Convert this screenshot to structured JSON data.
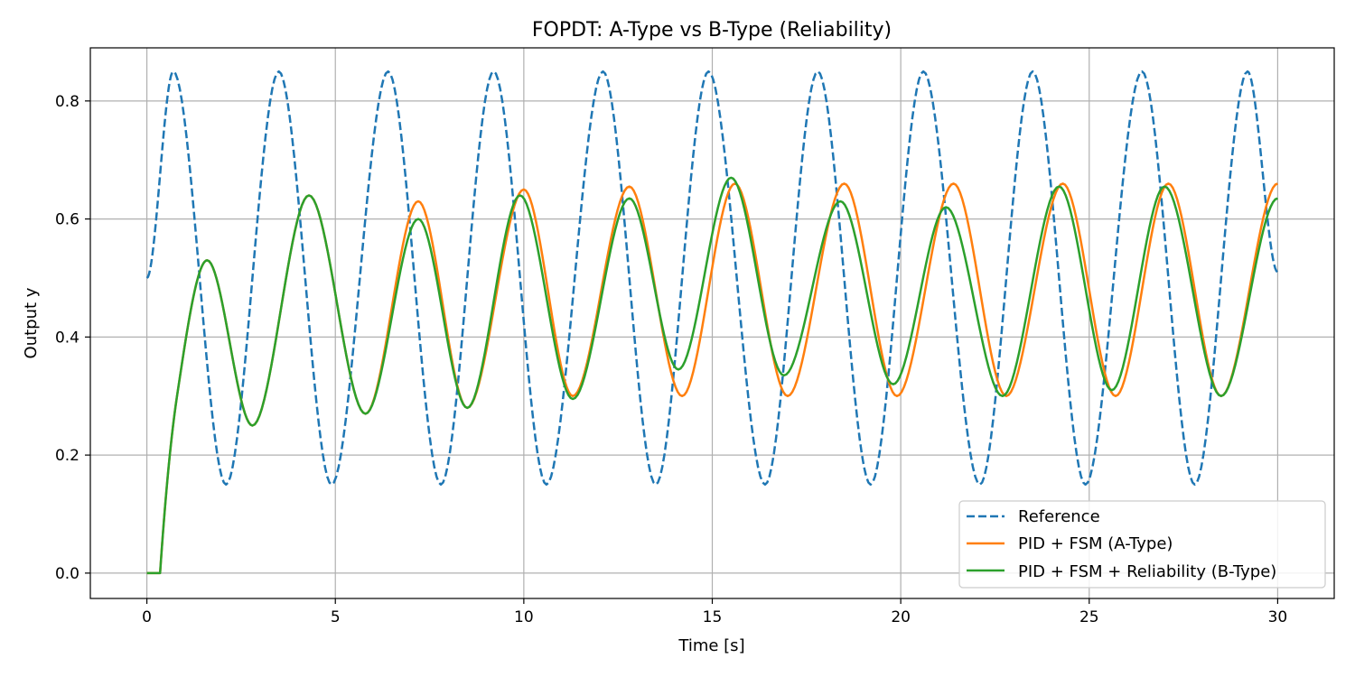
{
  "chart_data": {
    "type": "line",
    "title": "FOPDT: A-Type vs B-Type (Reliability)",
    "xlabel": "Time [s]",
    "ylabel": "Output y",
    "xlim": [
      -1.5,
      31.5
    ],
    "ylim": [
      -0.043,
      0.89
    ],
    "xticks": [
      0,
      5,
      10,
      15,
      20,
      25,
      30
    ],
    "yticks": [
      0.0,
      0.2,
      0.4,
      0.6,
      0.8
    ],
    "xtick_labels": [
      "0",
      "5",
      "10",
      "15",
      "20",
      "25",
      "30"
    ],
    "ytick_labels": [
      "0.0",
      "0.2",
      "0.4",
      "0.6",
      "0.8"
    ],
    "grid": true,
    "legend_position": "lower-right",
    "series": [
      {
        "name": "Reference",
        "color": "#1f77b4",
        "style": "dashed",
        "x": [
          0,
          0.7,
          2.1,
          3.5,
          4.9,
          6.4,
          7.8,
          9.2,
          10.6,
          12.1,
          13.5,
          14.9,
          16.4,
          17.8,
          19.2,
          20.6,
          22.1,
          23.5,
          24.9,
          26.4,
          27.8,
          29.2,
          30
        ],
        "y": [
          0.5,
          0.85,
          0.15,
          0.85,
          0.15,
          0.85,
          0.15,
          0.85,
          0.15,
          0.85,
          0.15,
          0.85,
          0.15,
          0.85,
          0.15,
          0.85,
          0.15,
          0.85,
          0.15,
          0.85,
          0.15,
          0.85,
          0.51
        ]
      },
      {
        "name": "PID + FSM (A-Type)",
        "color": "#ff7f0e",
        "style": "solid",
        "x": [
          0,
          0.35,
          0.8,
          1.6,
          2.8,
          4.3,
          5.8,
          7.2,
          8.5,
          10.0,
          11.3,
          12.8,
          14.2,
          15.6,
          17.0,
          18.5,
          19.9,
          21.4,
          22.8,
          24.3,
          25.7,
          27.1,
          28.5,
          30
        ],
        "y": [
          0,
          0,
          0.3,
          0.53,
          0.25,
          0.64,
          0.27,
          0.63,
          0.28,
          0.65,
          0.3,
          0.655,
          0.3,
          0.66,
          0.3,
          0.66,
          0.3,
          0.66,
          0.3,
          0.66,
          0.3,
          0.66,
          0.3,
          0.66
        ]
      },
      {
        "name": "PID + FSM + Reliability (B-Type)",
        "color": "#2ca02c",
        "style": "solid",
        "x": [
          0,
          0.35,
          0.8,
          1.6,
          2.8,
          4.3,
          5.8,
          7.2,
          8.5,
          9.9,
          11.3,
          12.8,
          14.1,
          15.5,
          16.9,
          18.4,
          19.8,
          21.2,
          22.7,
          24.2,
          25.6,
          27.0,
          28.5,
          30
        ],
        "y": [
          0,
          0,
          0.3,
          0.53,
          0.25,
          0.64,
          0.27,
          0.6,
          0.28,
          0.64,
          0.295,
          0.635,
          0.345,
          0.67,
          0.335,
          0.63,
          0.32,
          0.62,
          0.3,
          0.655,
          0.31,
          0.655,
          0.3,
          0.635
        ]
      }
    ]
  }
}
